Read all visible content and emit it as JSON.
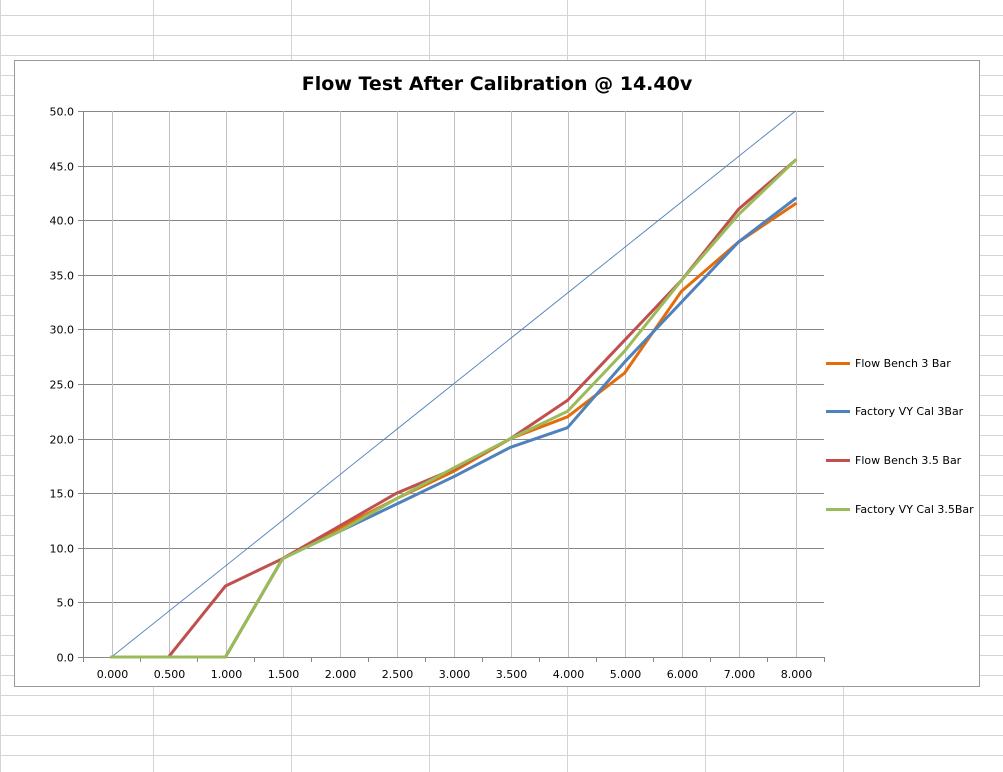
{
  "chart_data": {
    "type": "line",
    "title": "Flow Test After Calibration @ 14.40v",
    "xlabel": "",
    "ylabel": "",
    "categories": [
      "0.000",
      "0.500",
      "1.000",
      "1.500",
      "2.000",
      "2.500",
      "3.000",
      "3.500",
      "4.000",
      "5.000",
      "6.000",
      "7.000",
      "8.000"
    ],
    "ylim": [
      0,
      50
    ],
    "yticks": [
      "0.0",
      "5.0",
      "10.0",
      "15.0",
      "20.0",
      "25.0",
      "30.0",
      "35.0",
      "40.0",
      "45.0",
      "50.0"
    ],
    "grid": true,
    "legend_position": "right",
    "series": [
      {
        "name": "Flow Bench 3 Bar",
        "color": "#e46c0a",
        "values": [
          0,
          0,
          0,
          9,
          11.8,
          14.5,
          17,
          20,
          22,
          26,
          33.5,
          38,
          41.5
        ]
      },
      {
        "name": "Factory VY Cal 3Bar",
        "color": "#4f81bd",
        "values": [
          0,
          0,
          0,
          9,
          11.5,
          14,
          16.5,
          19.2,
          21,
          27,
          32.5,
          38,
          42
        ]
      },
      {
        "name": "Flow Bench 3.5 Bar",
        "color": "#c0504d",
        "values": [
          0,
          0,
          6.5,
          9,
          12,
          15,
          17.2,
          20,
          23.5,
          29,
          34.5,
          41,
          45.5
        ]
      },
      {
        "name": "Factory VY Cal 3.5Bar",
        "color": "#9bbb59",
        "values": [
          0,
          0,
          0,
          9,
          11.5,
          14.5,
          17.3,
          20,
          22.5,
          28,
          34.5,
          40.5,
          45.5
        ]
      }
    ],
    "reference_line": {
      "color": "#4f81bd",
      "values": [
        0,
        50
      ]
    }
  }
}
